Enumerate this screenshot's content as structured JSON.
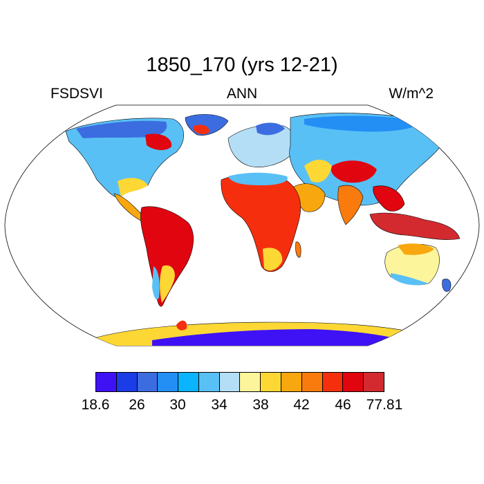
{
  "title": "1850_170 (yrs 12-21)",
  "subtitle_left": "FSDSVI",
  "subtitle_center": "ANN",
  "subtitle_right": "W/m^2",
  "colorbar": {
    "colors": [
      "#3f12f5",
      "#1a3de8",
      "#3c6de0",
      "#238ff5",
      "#0ab4ff",
      "#59c0f5",
      "#b3def6",
      "#fdf59b",
      "#fdd835",
      "#f9a70e",
      "#f97b0e",
      "#f52f0e",
      "#e0050f",
      "#d32a2f"
    ],
    "labels": [
      "18.6",
      "26",
      "30",
      "34",
      "38",
      "42",
      "46",
      "77.81"
    ]
  },
  "map": {
    "projection": "robinson",
    "variable": "FSDSVI",
    "units": "W/m^2"
  }
}
